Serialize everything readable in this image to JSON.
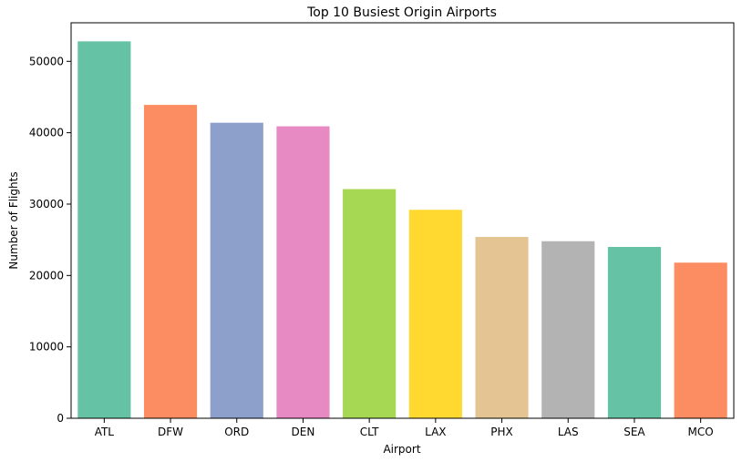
{
  "chart_data": {
    "type": "bar",
    "title": "Top 10 Busiest Origin Airports",
    "xlabel": "Airport",
    "ylabel": "Number of Flights",
    "categories": [
      "ATL",
      "DFW",
      "ORD",
      "DEN",
      "CLT",
      "LAX",
      "PHX",
      "LAS",
      "SEA",
      "MCO"
    ],
    "values": [
      52800,
      43900,
      41400,
      40900,
      32100,
      29200,
      25400,
      24800,
      24000,
      21800
    ],
    "colors": [
      "#66c2a5",
      "#fc8d62",
      "#8da0cb",
      "#e78ac3",
      "#a6d854",
      "#ffd92f",
      "#e5c494",
      "#b3b3b3",
      "#66c2a5",
      "#fc8d62"
    ],
    "ylim": [
      0,
      55400
    ],
    "yticks": [
      0,
      10000,
      20000,
      30000,
      40000,
      50000
    ],
    "grid": false,
    "legend": "none"
  }
}
